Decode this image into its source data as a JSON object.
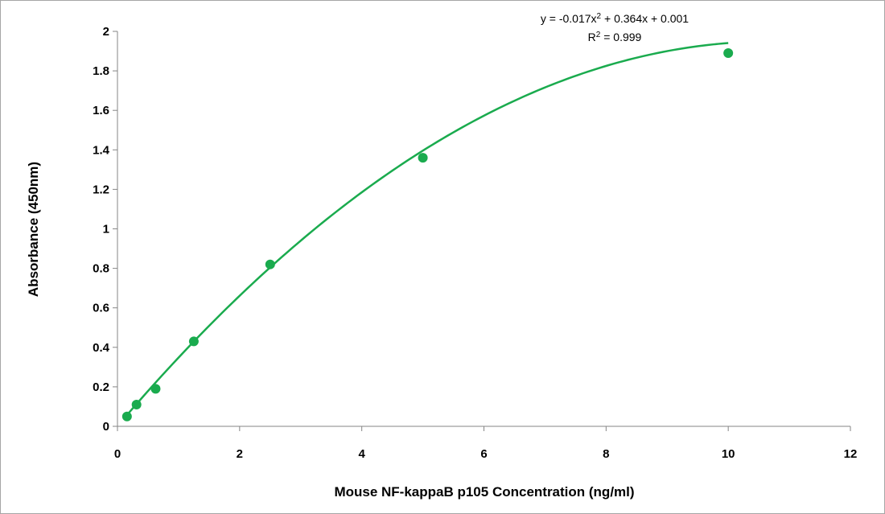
{
  "chart_data": {
    "type": "scatter",
    "title": "",
    "xlabel": "Mouse NF-kappaB p105 Concentration (ng/ml)",
    "ylabel": "Absorbance (450nm)",
    "xlim": [
      0,
      12
    ],
    "ylim": [
      0,
      2
    ],
    "x_ticks": [
      "0",
      "2",
      "4",
      "6",
      "8",
      "10",
      "12"
    ],
    "y_ticks": [
      "0",
      "0.2",
      "0.4",
      "0.6",
      "0.8",
      "1",
      "1.2",
      "1.4",
      "1.6",
      "1.8",
      "2"
    ],
    "grid": false,
    "series": [
      {
        "color": "#1aab4e",
        "points": [
          {
            "x": 0.156,
            "y": 0.05
          },
          {
            "x": 0.312,
            "y": 0.11
          },
          {
            "x": 0.625,
            "y": 0.19
          },
          {
            "x": 1.25,
            "y": 0.43
          },
          {
            "x": 2.5,
            "y": 0.82
          },
          {
            "x": 5,
            "y": 1.36
          },
          {
            "x": 10,
            "y": 1.89
          }
        ]
      }
    ],
    "trendline": {
      "type": "polynomial",
      "color": "#1aab4e",
      "coefficients": {
        "a": -0.017,
        "b": 0.364,
        "c": 0.001
      },
      "equation_parts": {
        "pre": "y = -0.017x",
        "sup": "2",
        "post": " + 0.364x + 0.001"
      },
      "r2_parts": {
        "pre": "R",
        "sup": "2",
        "post": " = 0.999"
      }
    }
  }
}
